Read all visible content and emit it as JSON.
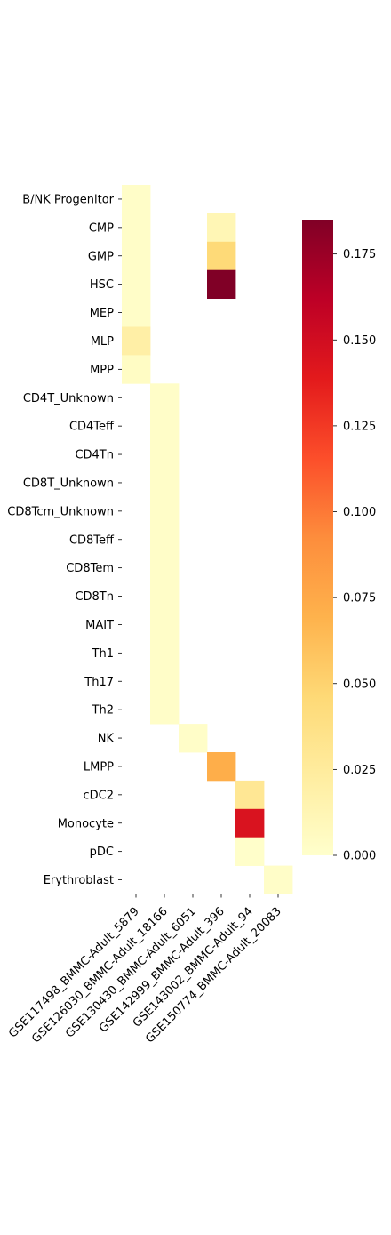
{
  "chart_data": {
    "type": "heatmap",
    "title": "",
    "xlabel": "",
    "ylabel": "",
    "x_categories": [
      "GSE117498_BMMC-Adult_5879",
      "GSE126030_BMMC-Adult_18166",
      "GSE130430_BMMC-Adult_6051",
      "GSE142999_BMMC-Adult_396",
      "GSE143002_BMMC-Adult_94",
      "GSE150774_BMMC-Adult_20083"
    ],
    "y_categories": [
      "B/NK Progenitor",
      "CMP",
      "GMP",
      "HSC",
      "MEP",
      "MLP",
      "MPP",
      "CD4T_Unknown",
      "CD4Teff",
      "CD4Tn",
      "CD8T_Unknown",
      "CD8Tcm_Unknown",
      "CD8Teff",
      "CD8Tem",
      "CD8Tn",
      "MAIT",
      "Th1",
      "Th17",
      "Th2",
      "NK",
      "LMPP",
      "cDC2",
      "Monocyte",
      "pDC",
      "Erythroblast"
    ],
    "values": [
      [
        0.002,
        null,
        null,
        null,
        null,
        null
      ],
      [
        0.002,
        null,
        null,
        0.012,
        null,
        null
      ],
      [
        0.002,
        null,
        null,
        0.045,
        null,
        null
      ],
      [
        0.002,
        null,
        null,
        0.185,
        null,
        null
      ],
      [
        0.002,
        null,
        null,
        null,
        null,
        null
      ],
      [
        0.02,
        null,
        null,
        null,
        null,
        null
      ],
      [
        0.004,
        null,
        null,
        null,
        null,
        null
      ],
      [
        null,
        0.002,
        null,
        null,
        null,
        null
      ],
      [
        null,
        0.002,
        null,
        null,
        null,
        null
      ],
      [
        null,
        0.002,
        null,
        null,
        null,
        null
      ],
      [
        null,
        0.002,
        null,
        null,
        null,
        null
      ],
      [
        null,
        0.002,
        null,
        null,
        null,
        null
      ],
      [
        null,
        0.002,
        null,
        null,
        null,
        null
      ],
      [
        null,
        0.002,
        null,
        null,
        null,
        null
      ],
      [
        null,
        0.002,
        null,
        null,
        null,
        null
      ],
      [
        null,
        0.002,
        null,
        null,
        null,
        null
      ],
      [
        null,
        0.002,
        null,
        null,
        null,
        null
      ],
      [
        null,
        0.002,
        null,
        null,
        null,
        null
      ],
      [
        null,
        0.002,
        null,
        null,
        null,
        null
      ],
      [
        null,
        null,
        0.002,
        null,
        null,
        null
      ],
      [
        null,
        null,
        null,
        0.072,
        null,
        null
      ],
      [
        null,
        null,
        null,
        null,
        0.03,
        null
      ],
      [
        null,
        null,
        null,
        null,
        0.145,
        null
      ],
      [
        null,
        null,
        null,
        null,
        0.001,
        null
      ],
      [
        null,
        null,
        null,
        null,
        null,
        0.002
      ]
    ],
    "colorbar": {
      "range": [
        0,
        0.185
      ],
      "ticks": [
        "0.000",
        "0.025",
        "0.050",
        "0.075",
        "0.100",
        "0.125",
        "0.150",
        "0.175"
      ],
      "tick_values": [
        0,
        0.025,
        0.05,
        0.075,
        0.1,
        0.125,
        0.15,
        0.175
      ]
    },
    "colormap": "YlOrRd",
    "colormap_stops": [
      "#ffffcc",
      "#ffeda0",
      "#fed976",
      "#feb24c",
      "#fd8d3c",
      "#fc4e2a",
      "#e31a1c",
      "#bd0026",
      "#800026"
    ],
    "grid": false,
    "legend": "colorbar-right"
  }
}
